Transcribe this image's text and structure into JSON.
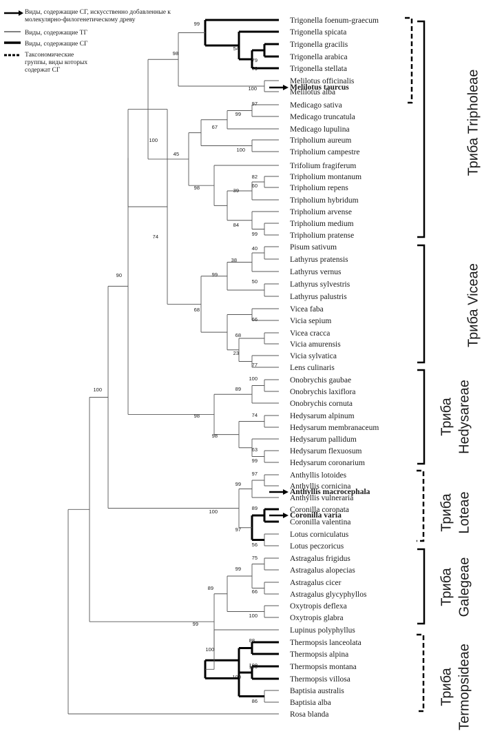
{
  "colors": {
    "line": "#555555",
    "bold": "#000000",
    "text": "#1a1a1a"
  },
  "legend": [
    {
      "style": "arrow",
      "lines": [
        "Виды, содержащие СГ, искусственно добавленные к",
        "молекулярно-филогенетическому древу"
      ]
    },
    {
      "style": "thin",
      "lines": [
        "Виды, содержащие ТГ"
      ]
    },
    {
      "style": "thick",
      "lines": [
        "Виды, содержащие СГ"
      ]
    },
    {
      "style": "dashed",
      "lines": [
        "Таксономические",
        "группы, виды которых",
        "содержат СГ"
      ]
    }
  ],
  "taxa": [
    "Trigonella foenum-graecum",
    "Trigonella spicata",
    "Trigonella gracilis",
    "Trigonella arabica",
    "Trigonella stellata",
    "Melilotus officinalis",
    "Melilotus alba",
    "Medicago sativa",
    "Medicago truncatula",
    "Medicago lupulina",
    "Tripholium aureum",
    "Tripholium campestre",
    "Trifolium fragiferum",
    "Tripholium montanum",
    "Tripholium repens",
    "Tripholium hybridum",
    "Tripholium arvense",
    "Tripholium medium",
    "Tripholium pratense",
    "Pisum sativum",
    "Lathyrus pratensis",
    "Lathyrus vernus",
    "Lathyrus sylvestris",
    "Lathyrus palustris",
    "Vicea faba",
    "Vicia sepium",
    "Vicea cracca",
    "Vicia amurensis",
    "Vicia sylvatica",
    "Lens culinaris",
    "Onobrychis gaubae",
    "Onobrychis laxiflora",
    "Onobrychis cornuta",
    "Hedysarum alpinum",
    "Hedysarum membranaceum",
    "Hedysarum pallidum",
    "Hedysarum flexuosum",
    "Hedysarum coronarium",
    "Anthyllis lotoides",
    "Anthyllis cornicina",
    "Anthyllis vulneraria",
    "Coronilla coronata",
    "Coronilla valentina",
    "Lotus corniculatus",
    "Lotus peczoricus",
    "Astragalus frigidus",
    "Astragalus alopecias",
    "Astragalus cicer",
    "Astragalus glycyphyllos",
    "Oxytropis deflexa",
    "Oxytropis glabra",
    "Lupinus polyphyllus",
    "Thermopsis lanceolata",
    "Thermopsis alpina",
    "Thermopsis montana",
    "Thermopsis villosa",
    "Baptisia australis",
    "Baptisia alba",
    "Rosa blanda"
  ],
  "added": [
    "Melilotus taurcus",
    "Anthyllis macrocephala",
    "Coronilla varia"
  ],
  "bootstrap": [
    "99",
    "54",
    "79",
    "79",
    "98",
    "100",
    "97",
    "99",
    "67",
    "100",
    "45",
    "82",
    "60",
    "98",
    "39",
    "84",
    "99",
    "100",
    "74",
    "40",
    "38",
    "50",
    "99",
    "68",
    "66",
    "68",
    "23",
    "77",
    "98",
    "90",
    "100",
    "89",
    "74",
    "98",
    "63",
    "99",
    "97",
    "99",
    "89",
    "100",
    "97",
    "56",
    "100",
    "75",
    "99",
    "66",
    "89",
    "100",
    "99",
    "88",
    "100",
    "100",
    "100",
    "100",
    "86",
    "99"
  ],
  "tribes": [
    {
      "lines": [
        "Триба Tripholeae"
      ]
    },
    {
      "lines": [
        "Триба Viceae"
      ]
    },
    {
      "lines": [
        "Триба",
        "Hedysareae"
      ]
    },
    {
      "lines": [
        "Триба",
        "Loteae"
      ]
    },
    {
      "lines": [
        "Триба",
        "Galegeae"
      ]
    },
    {
      "lines": [
        "Триба",
        "Termopsideae"
      ]
    }
  ]
}
